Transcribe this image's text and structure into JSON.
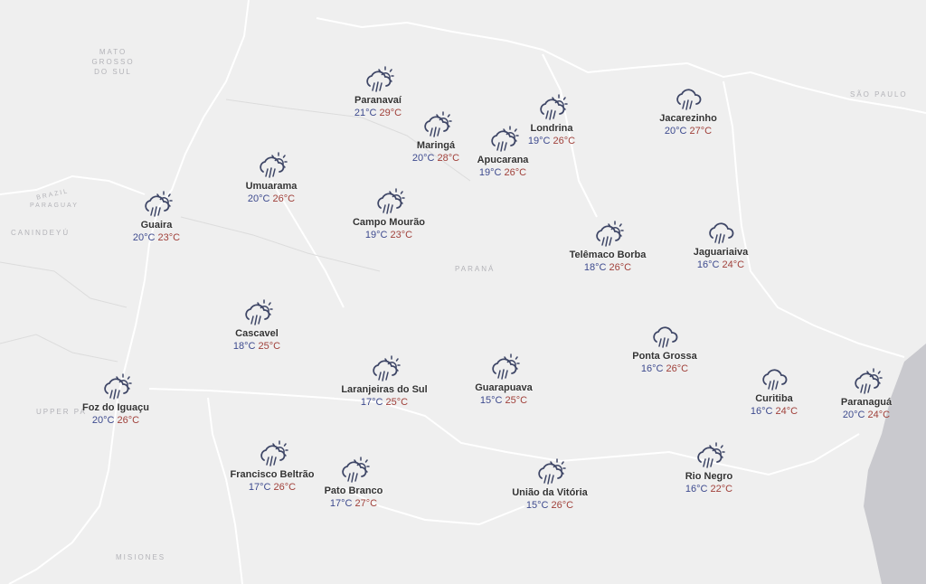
{
  "map": {
    "colors": {
      "land": "#efefef",
      "ocean": "#c9c9ce",
      "rivers": "#ffffff",
      "icon": "#3e4666",
      "temp_min": "#3d4a8e",
      "temp_max": "#a0403a"
    },
    "region_labels": [
      {
        "id": "mato-grosso",
        "text": "MATO\nGROSSO\nDO SUL"
      },
      {
        "id": "sao-paulo",
        "text": "SÃO PAULO"
      },
      {
        "id": "brazil",
        "text": "BRAZIL"
      },
      {
        "id": "paraguay",
        "text": "PARAGUAY"
      },
      {
        "id": "canindeyu",
        "text": "CANINDEYÚ"
      },
      {
        "id": "parana",
        "text": "PARANÁ"
      },
      {
        "id": "upper-parana",
        "text": "UPPER PA"
      },
      {
        "id": "misiones",
        "text": "MISIONES"
      }
    ],
    "cities": [
      {
        "name": "Paranavaí",
        "min": "21°C",
        "max": "29°C",
        "icon": "sun-cloud-rain-icon"
      },
      {
        "name": "Maringá",
        "min": "20°C",
        "max": "28°C",
        "icon": "sun-cloud-rain-icon"
      },
      {
        "name": "Apucarana",
        "min": "19°C",
        "max": "26°C",
        "icon": "sun-cloud-rain-icon"
      },
      {
        "name": "Londrina",
        "min": "19°C",
        "max": "26°C",
        "icon": "sun-cloud-rain-icon"
      },
      {
        "name": "Jacarezinho",
        "min": "20°C",
        "max": "27°C",
        "icon": "cloud-rain-icon"
      },
      {
        "name": "Umuarama",
        "min": "20°C",
        "max": "26°C",
        "icon": "sun-cloud-rain-icon"
      },
      {
        "name": "Guaira",
        "min": "20°C",
        "max": "23°C",
        "icon": "sun-cloud-rain-icon"
      },
      {
        "name": "Campo Mourão",
        "min": "19°C",
        "max": "23°C",
        "icon": "sun-cloud-rain-icon"
      },
      {
        "name": "Telêmaco Borba",
        "min": "18°C",
        "max": "26°C",
        "icon": "sun-cloud-rain-icon"
      },
      {
        "name": "Jaguariaiva",
        "min": "16°C",
        "max": "24°C",
        "icon": "cloud-rain-icon"
      },
      {
        "name": "Cascavel",
        "min": "18°C",
        "max": "25°C",
        "icon": "sun-cloud-rain-icon"
      },
      {
        "name": "Ponta Grossa",
        "min": "16°C",
        "max": "26°C",
        "icon": "cloud-rain-icon"
      },
      {
        "name": "Foz do Iguaçu",
        "min": "20°C",
        "max": "26°C",
        "icon": "sun-cloud-rain-icon"
      },
      {
        "name": "Laranjeiras do Sul",
        "min": "17°C",
        "max": "25°C",
        "icon": "sun-cloud-rain-icon"
      },
      {
        "name": "Guarapuava",
        "min": "15°C",
        "max": "25°C",
        "icon": "sun-cloud-rain-icon"
      },
      {
        "name": "Curitiba",
        "min": "16°C",
        "max": "24°C",
        "icon": "cloud-rain-icon"
      },
      {
        "name": "Paranaguá",
        "min": "20°C",
        "max": "24°C",
        "icon": "sun-cloud-rain-icon"
      },
      {
        "name": "Francisco Beltrão",
        "min": "17°C",
        "max": "26°C",
        "icon": "sun-cloud-rain-icon"
      },
      {
        "name": "Pato Branco",
        "min": "17°C",
        "max": "27°C",
        "icon": "sun-cloud-rain-icon"
      },
      {
        "name": "União da Vitória",
        "min": "15°C",
        "max": "26°C",
        "icon": "sun-cloud-rain-icon"
      },
      {
        "name": "Rio Negro",
        "min": "16°C",
        "max": "22°C",
        "icon": "sun-cloud-rain-icon"
      }
    ]
  }
}
